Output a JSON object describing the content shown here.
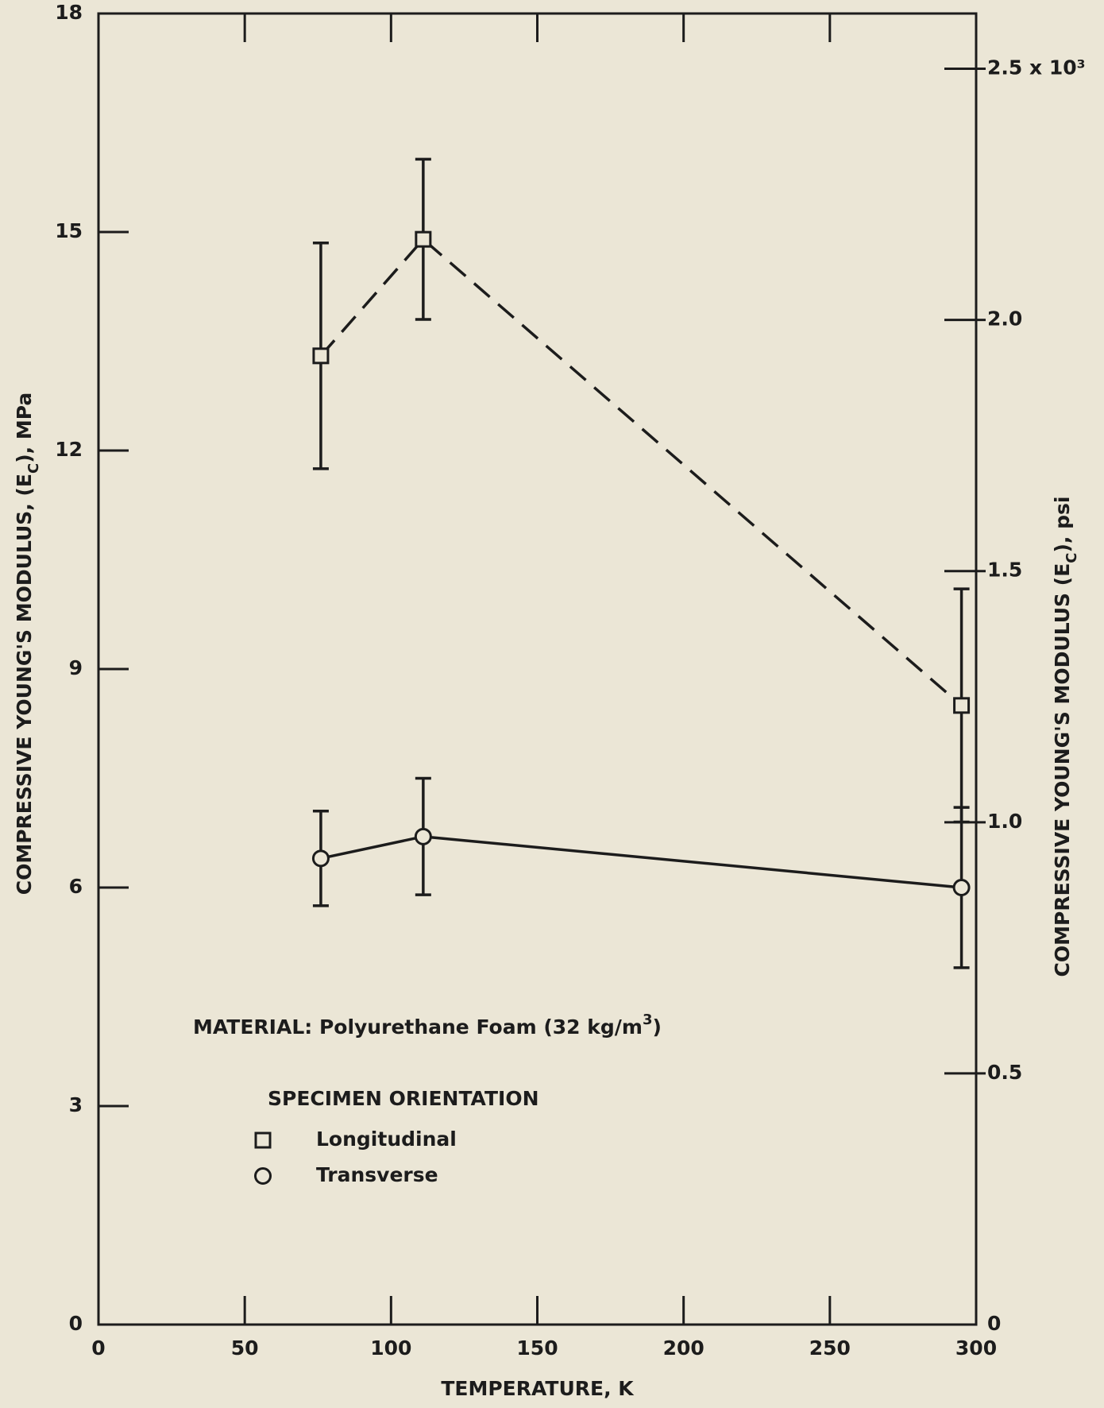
{
  "chart_data": {
    "type": "line",
    "xlabel": "TEMPERATURE, K",
    "ylabel": [
      "COMPRESSIVE YOUNG'S MODULUS,  (E",
      "C",
      "), MPa"
    ],
    "y2label": [
      "COMPRESSIVE YOUNG'S MODULUS (E",
      "C",
      "), psi"
    ],
    "annotation": [
      "MATERIAL: Polyurethane Foam (32 kg/m",
      "3",
      ")"
    ],
    "legend_title": "SPECIMEN ORIENTATION",
    "x": [
      76,
      111,
      295
    ],
    "series": [
      {
        "name": "Longitudinal",
        "color": "#1c1c1c",
        "marker": "square",
        "dashed": true,
        "values": [
          13.3,
          14.9,
          8.5
        ],
        "errors": [
          1.55,
          1.1,
          1.6
        ]
      },
      {
        "name": "Transverse",
        "color": "#1c1c1c",
        "marker": "circle",
        "dashed": false,
        "values": [
          6.4,
          6.7,
          6.0
        ],
        "errors": [
          0.65,
          0.8,
          1.1
        ]
      }
    ],
    "xlim": [
      0,
      300
    ],
    "xticks": [
      0,
      50,
      100,
      150,
      200,
      250,
      300
    ],
    "ylim": [
      0,
      18
    ],
    "yticks": [
      0,
      3,
      6,
      9,
      12,
      15,
      18
    ],
    "y2lim": [
      0,
      2.61
    ],
    "y2ticks": [
      0,
      0.5,
      {
        "value": 1.0,
        "label": "1.0"
      },
      1.5,
      {
        "value": 2.0,
        "label": "2.0"
      },
      {
        "value": 2.5,
        "label": "2.5 x 10³"
      }
    ]
  }
}
